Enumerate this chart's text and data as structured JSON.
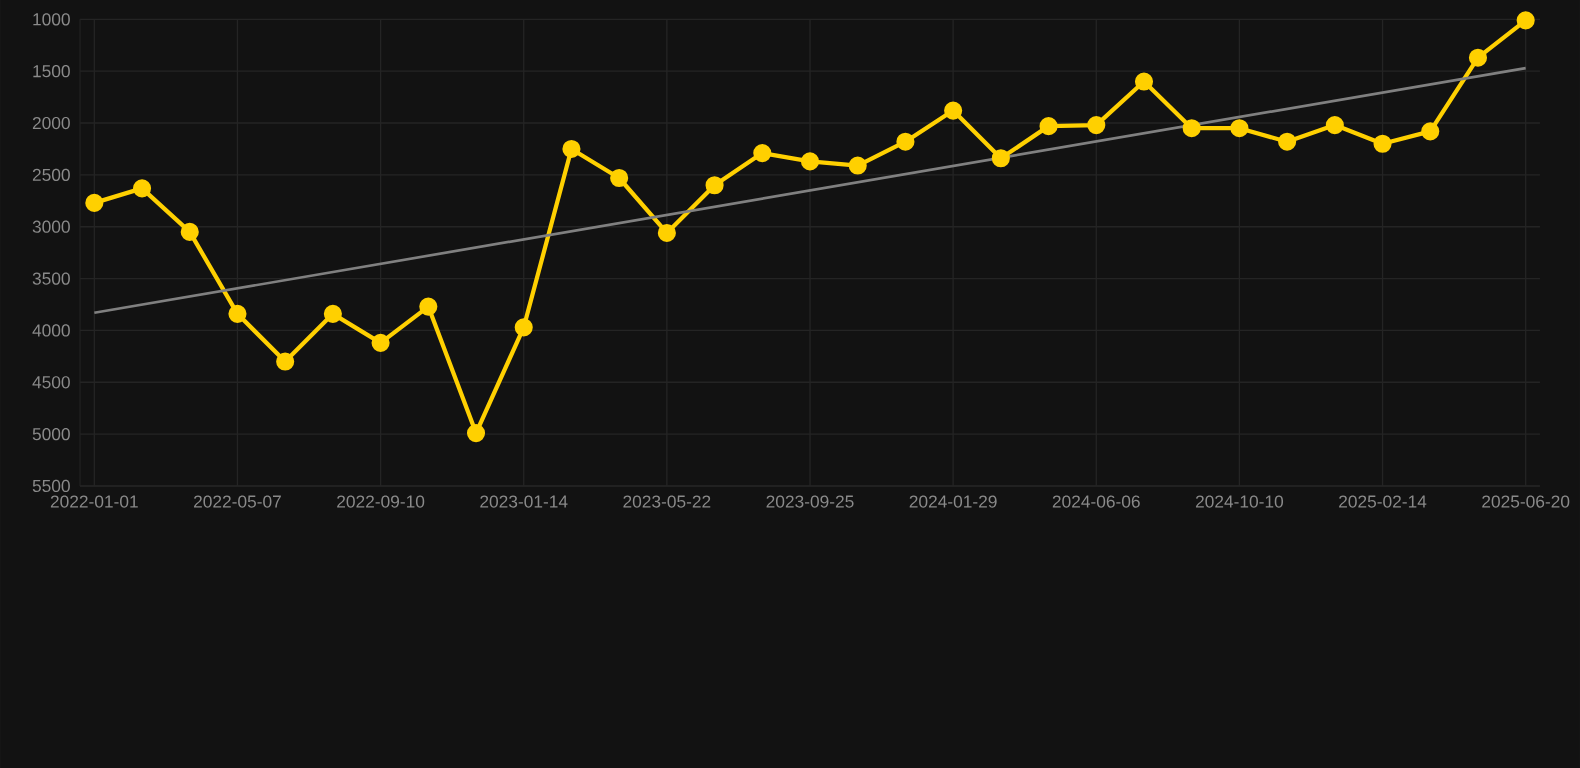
{
  "chart_data": {
    "type": "line",
    "categories": [
      "2022-01-01",
      null,
      null,
      "2022-05-07",
      null,
      null,
      "2022-09-10",
      null,
      null,
      "2023-01-14",
      null,
      null,
      "2023-05-22",
      null,
      null,
      "2023-09-25",
      null,
      null,
      "2024-01-29",
      null,
      null,
      "2024-06-06",
      null,
      null,
      "2024-10-10",
      null,
      null,
      "2025-02-14",
      null,
      null,
      "2025-06-20"
    ],
    "series": [
      {
        "color": "#ffd000",
        "values": [
          2770,
          2630,
          3050,
          3840,
          4300,
          3840,
          4120,
          3770,
          4990,
          3970,
          2250,
          2530,
          3060,
          2600,
          2290,
          2370,
          2410,
          2180,
          1880,
          2340,
          2030,
          2020,
          1600,
          2050,
          2050,
          2180,
          2020,
          2200,
          2080,
          1370,
          1010
        ]
      },
      {
        "type": "line",
        "marker": "none",
        "color": "#808080",
        "values": [
          3830,
          null,
          null,
          null,
          null,
          null,
          null,
          null,
          null,
          null,
          null,
          null,
          null,
          null,
          null,
          null,
          null,
          null,
          null,
          null,
          null,
          null,
          null,
          null,
          null,
          null,
          null,
          null,
          null,
          null,
          1470
        ]
      }
    ],
    "ylim": [
      5500,
      1000
    ],
    "yticks": [
      1000,
      1500,
      2000,
      2500,
      3000,
      3500,
      4000,
      4500,
      5000,
      5500
    ],
    "grid": true,
    "marker": "circle"
  }
}
